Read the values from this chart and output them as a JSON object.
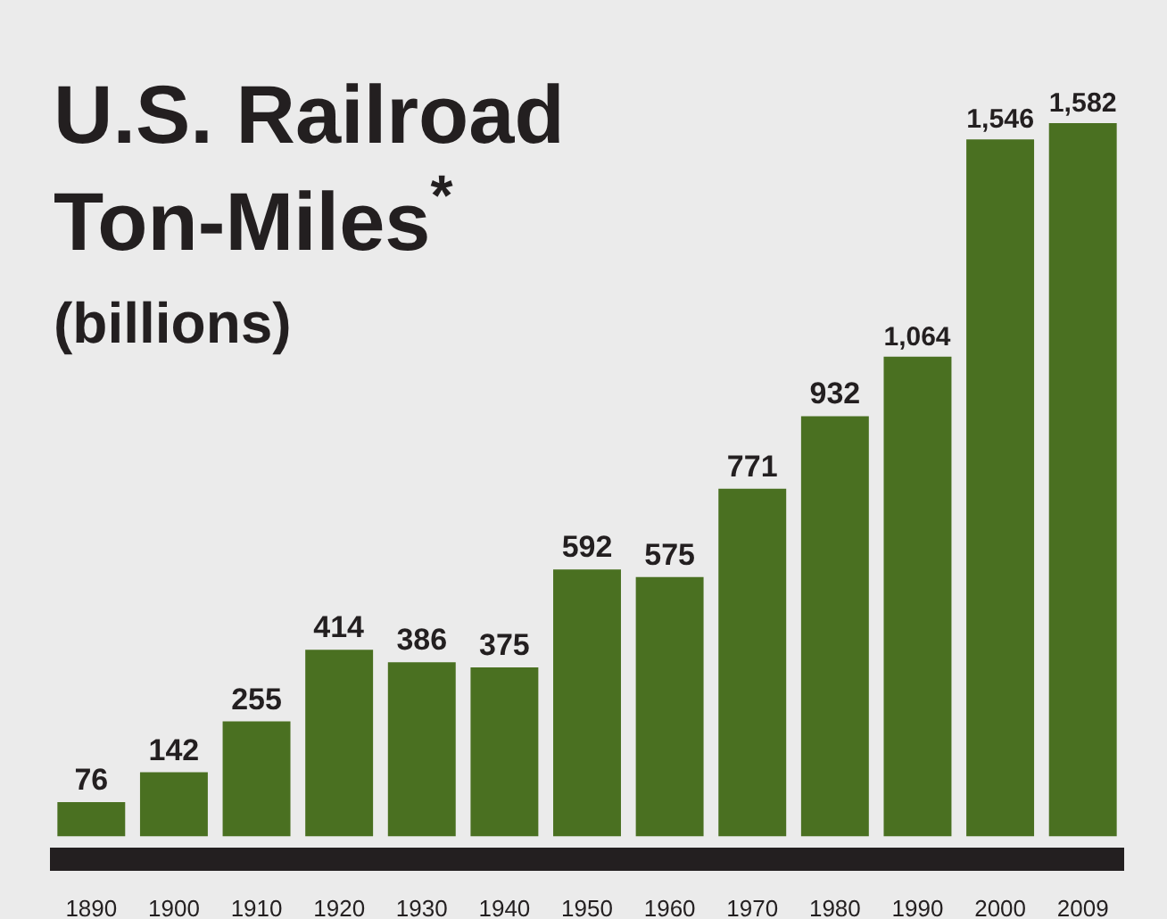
{
  "chart_data": {
    "type": "bar",
    "title": "U.S. Railroad Ton-Miles$^{*}$",
    "subtitle": "(billions)",
    "categories": [
      "1890",
      "1900",
      "1910",
      "1920",
      "1930",
      "1940",
      "1950",
      "1960",
      "1970",
      "1980",
      "1990",
      "2000",
      "2009"
    ],
    "values": [
      76,
      142,
      255,
      414,
      386,
      375,
      592,
      575,
      771,
      932,
      1064,
      1546,
      1582
    ],
    "value_labels": [
      "76",
      "142",
      "255",
      "414",
      "386",
      "375",
      "592",
      "575",
      "771",
      "932",
      "1,064",
      "1,546",
      "1,582"
    ],
    "color": "#4a7021",
    "grid": false,
    "legend": false
  }
}
